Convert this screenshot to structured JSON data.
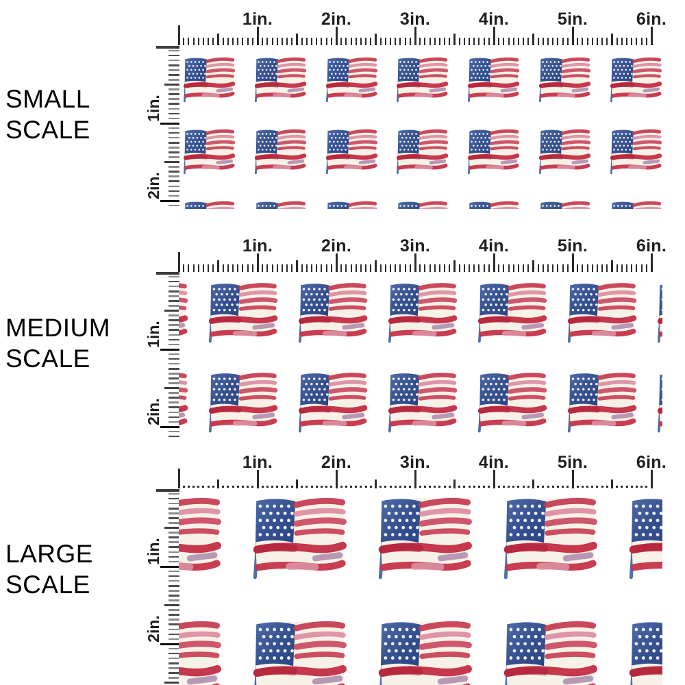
{
  "panels": [
    {
      "name": "Small Scale",
      "label_line1": "SMALL",
      "label_line2": "SCALE",
      "flags_per_row": 7,
      "rows_visible": 3,
      "motif_size": "small"
    },
    {
      "name": "Medium Scale",
      "label_line1": "MEDIUM",
      "label_line2": "SCALE",
      "flags_per_row": 7,
      "rows_visible": 2,
      "motif_size": "medium"
    },
    {
      "name": "Large Scale",
      "label_line1": "LARGE",
      "label_line2": "SCALE",
      "flags_per_row": 5,
      "rows_visible": 2,
      "motif_size": "large"
    }
  ],
  "ruler": {
    "unit": "in.",
    "horizontal_labels": [
      "1in.",
      "2in.",
      "3in.",
      "4in.",
      "5in.",
      "6in."
    ],
    "vertical_labels": [
      "1in.",
      "2in."
    ],
    "inches_shown_horizontal": 6,
    "inches_shown_vertical": 2
  },
  "pattern": {
    "motif": "watercolor-american-flag",
    "colors": {
      "flag_blue_light": "#4e6aa6",
      "flag_blue_dark": "#2a4583",
      "flag_red": "#c63a50",
      "flag_red_dark": "#b02741",
      "flag_pink": "#dc8ba0",
      "flag_mauve": "#ac88ab",
      "flag_cream": "#f7f2e7",
      "pole_blue": "#5070aa",
      "ruler_tick": "#2b2b2b",
      "ruler_gray": "#8a8a8a",
      "background": "#ffffff"
    }
  }
}
